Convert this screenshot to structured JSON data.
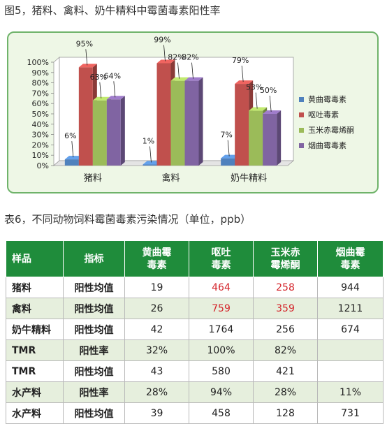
{
  "figure_caption": "图5，猪料、禽料、奶牛精料中霉菌毒素阳性率",
  "colors": {
    "series": [
      "#4f81bd",
      "#c0504d",
      "#9bbb59",
      "#8064a2"
    ],
    "highlight": "#d4252b",
    "header": "#1f8c3b"
  },
  "chart_data": {
    "type": "bar",
    "categories": [
      "猪料",
      "禽料",
      "奶牛精料"
    ],
    "series": [
      {
        "name": "黄曲霉毒素",
        "values": [
          6,
          1,
          7
        ]
      },
      {
        "name": "呕吐毒素",
        "values": [
          95,
          99,
          79
        ]
      },
      {
        "name": "玉米赤霉烯酮",
        "values": [
          63,
          82,
          53
        ]
      },
      {
        "name": "烟曲霉毒素",
        "values": [
          64,
          82,
          50
        ]
      }
    ],
    "value_labels": [
      [
        "6%",
        "1%",
        "7%"
      ],
      [
        "95%",
        "99%",
        "79%"
      ],
      [
        "63%",
        "82%",
        "53%"
      ],
      [
        "64%",
        "82%",
        "50%"
      ]
    ],
    "yticks": [
      "0%",
      "10%",
      "20%",
      "30%",
      "40%",
      "50%",
      "60%",
      "70%",
      "80%",
      "90%",
      "100%"
    ],
    "ylim": [
      0,
      100
    ],
    "unit": "%",
    "legend_position": "right",
    "grid": false,
    "style": "3d-column"
  },
  "table_caption": "表6，不同动物饲料霉菌毒素污染情况（单位，ppb）",
  "table": {
    "headers": [
      {
        "line1": "样品",
        "line2": ""
      },
      {
        "line1": "指标",
        "line2": ""
      },
      {
        "line1": "黄曲霉",
        "line2": "毒素"
      },
      {
        "line1": "呕吐",
        "line2": "毒素"
      },
      {
        "line1": "玉米赤",
        "line2": "霉烯酮"
      },
      {
        "line1": "烟曲霉",
        "line2": "毒素"
      }
    ],
    "rows": [
      {
        "sample": "猪料",
        "indicator": "阳性均值",
        "v1": "19",
        "v2": "464",
        "v3": "258",
        "v4": "944",
        "hl": [
          false,
          true,
          true,
          false
        ]
      },
      {
        "sample": "禽料",
        "indicator": "阳性均值",
        "v1": "26",
        "v2": "759",
        "v3": "359",
        "v4": "1211",
        "hl": [
          false,
          true,
          true,
          false
        ]
      },
      {
        "sample": "奶牛精料",
        "indicator": "阳性均值",
        "v1": "42",
        "v2": "1764",
        "v3": "256",
        "v4": "674",
        "hl": [
          false,
          false,
          false,
          false
        ]
      },
      {
        "sample": "TMR",
        "indicator": "阳性率",
        "v1": "32%",
        "v2": "100%",
        "v3": "82%",
        "v4": "",
        "hl": [
          false,
          false,
          false,
          false
        ]
      },
      {
        "sample": "TMR",
        "indicator": "阳性均值",
        "v1": "43",
        "v2": "580",
        "v3": "421",
        "v4": "",
        "hl": [
          false,
          false,
          false,
          false
        ]
      },
      {
        "sample": "水产料",
        "indicator": "阳性率",
        "v1": "28%",
        "v2": "94%",
        "v3": "28%",
        "v4": "11%",
        "hl": [
          false,
          false,
          false,
          false
        ]
      },
      {
        "sample": "水产料",
        "indicator": "阳性均值",
        "v1": "39",
        "v2": "458",
        "v3": "128",
        "v4": "731",
        "hl": [
          false,
          false,
          false,
          false
        ]
      }
    ]
  }
}
